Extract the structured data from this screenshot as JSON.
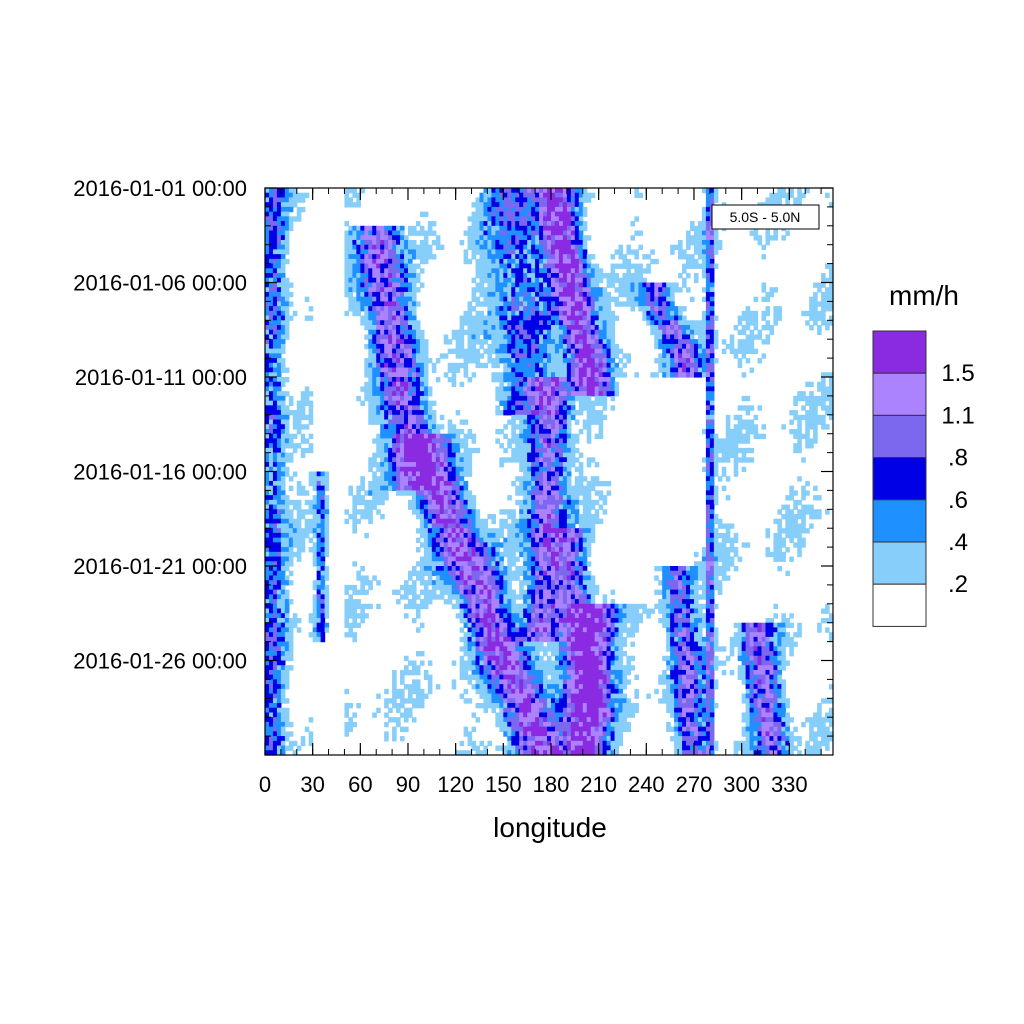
{
  "chart_data": {
    "type": "heatmap",
    "title": "",
    "region_label": "5.0S - 5.0N",
    "xlabel": "longitude",
    "ylabel": "",
    "colorbar_title": "mm/h",
    "xlim": [
      0,
      357.5
    ],
    "x_ticks": [
      0,
      30,
      60,
      90,
      120,
      150,
      180,
      210,
      240,
      270,
      300,
      330
    ],
    "x_tick_labels": [
      "0",
      "30",
      "60",
      "90",
      "120",
      "150",
      "180",
      "210",
      "240",
      "270",
      "300",
      "330"
    ],
    "y_range": [
      "2016-01-01 00:00",
      "2016-01-31 00:00"
    ],
    "y_ticks": [
      "2016-01-01 00:00",
      "2016-01-06 00:00",
      "2016-01-11 00:00",
      "2016-01-16 00:00",
      "2016-01-21 00:00",
      "2016-01-26 00:00"
    ],
    "levels": [
      0.2,
      0.4,
      0.6,
      0.8,
      1.1,
      1.5
    ],
    "level_labels": [
      ".2",
      ".4",
      ".6",
      ".8",
      "1.1",
      "1.5"
    ],
    "level_colors": [
      "#ffffff",
      "#87cefa",
      "#1e90ff",
      "#0000e6",
      "#7b68ee",
      "#ab82ff",
      "#8a2be2"
    ],
    "rain_features": [
      {
        "lon_start": 180,
        "day_start": 1,
        "lon_end": 205,
        "day_end": 11,
        "width": 14,
        "peak": 1.6
      },
      {
        "lon_start": 70,
        "day_start": 4,
        "lon_end": 95,
        "day_end": 16,
        "width": 16,
        "peak": 1.1
      },
      {
        "lon_start": 100,
        "day_start": 15,
        "lon_end": 175,
        "day_end": 31,
        "width": 18,
        "peak": 1.3
      },
      {
        "lon_start": 180,
        "day_start": 12,
        "lon_end": 175,
        "day_end": 24,
        "width": 14,
        "peak": 1.0
      },
      {
        "lon_start": 155,
        "day_start": 1,
        "lon_end": 165,
        "day_end": 12,
        "width": 22,
        "peak": 0.55
      },
      {
        "lon_start": 205,
        "day_start": 24,
        "lon_end": 200,
        "day_end": 31,
        "width": 16,
        "peak": 1.7
      },
      {
        "lon_start": 190,
        "day_start": 20,
        "lon_end": 205,
        "day_end": 28,
        "width": 12,
        "peak": 0.9
      },
      {
        "lon_start": 280,
        "day_start": 1,
        "lon_end": 280,
        "day_end": 31,
        "width": 3,
        "peak": 0.8
      },
      {
        "lon_start": 245,
        "day_start": 7,
        "lon_end": 265,
        "day_end": 10,
        "width": 12,
        "peak": 0.9
      },
      {
        "lon_start": 310,
        "day_start": 25,
        "lon_end": 320,
        "day_end": 31,
        "width": 12,
        "peak": 1.0
      },
      {
        "lon_start": 5,
        "day_start": 1,
        "lon_end": 5,
        "day_end": 31,
        "width": 10,
        "peak": 0.5
      },
      {
        "lon_start": 35,
        "day_start": 17,
        "lon_end": 35,
        "day_end": 24,
        "width": 5,
        "peak": 0.6
      },
      {
        "lon_start": 260,
        "day_start": 22,
        "lon_end": 270,
        "day_end": 31,
        "width": 12,
        "peak": 0.8
      }
    ]
  }
}
